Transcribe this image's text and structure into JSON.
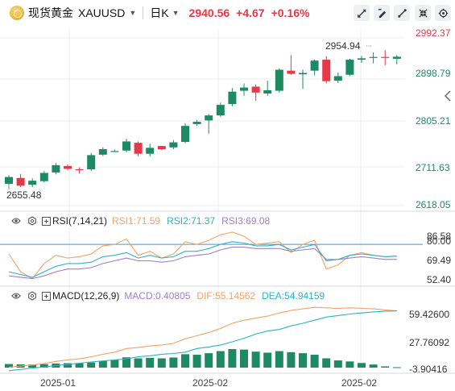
{
  "header": {
    "name_cn": "现货黄金",
    "symbol": "XAUUSD",
    "period": "日K",
    "last_price": "2940.56",
    "change": "+4.67",
    "change_pct": "+0.16%",
    "toolbar_icons": [
      "pencil-ruler-icon",
      "pencil-icon",
      "draw-line-icon",
      "collapse-icon",
      "settings-icon"
    ]
  },
  "price_axis": {
    "ticks": [
      "2992.37",
      "2898.79",
      "2805.21",
      "2711.63",
      "2618.05"
    ],
    "min": 2618.05,
    "max": 2992.37,
    "high_marker": "2954.94",
    "low_marker": "2655.48"
  },
  "candles": [
    {
      "o": 2662,
      "h": 2681,
      "l": 2655,
      "c": 2677
    },
    {
      "o": 2675,
      "h": 2684,
      "l": 2655,
      "c": 2658
    },
    {
      "o": 2660,
      "h": 2674,
      "l": 2655,
      "c": 2669
    },
    {
      "o": 2668,
      "h": 2690,
      "l": 2665,
      "c": 2686
    },
    {
      "o": 2687,
      "h": 2708,
      "l": 2683,
      "c": 2703
    },
    {
      "o": 2701,
      "h": 2705,
      "l": 2692,
      "c": 2695
    },
    {
      "o": 2694,
      "h": 2698,
      "l": 2685,
      "c": 2693
    },
    {
      "o": 2694,
      "h": 2730,
      "l": 2690,
      "c": 2725
    },
    {
      "o": 2726,
      "h": 2742,
      "l": 2723,
      "c": 2738
    },
    {
      "o": 2734,
      "h": 2737,
      "l": 2732,
      "c": 2734
    },
    {
      "o": 2735,
      "h": 2761,
      "l": 2731,
      "c": 2755
    },
    {
      "o": 2752,
      "h": 2755,
      "l": 2722,
      "c": 2728
    },
    {
      "o": 2728,
      "h": 2750,
      "l": 2722,
      "c": 2741
    },
    {
      "o": 2745,
      "h": 2745,
      "l": 2736,
      "c": 2738
    },
    {
      "o": 2742,
      "h": 2758,
      "l": 2738,
      "c": 2753
    },
    {
      "o": 2754,
      "h": 2795,
      "l": 2751,
      "c": 2789
    },
    {
      "o": 2793,
      "h": 2802,
      "l": 2789,
      "c": 2798
    },
    {
      "o": 2801,
      "h": 2815,
      "l": 2772,
      "c": 2812
    },
    {
      "o": 2812,
      "h": 2840,
      "l": 2809,
      "c": 2835
    },
    {
      "o": 2837,
      "h": 2872,
      "l": 2832,
      "c": 2864
    },
    {
      "o": 2866,
      "h": 2882,
      "l": 2855,
      "c": 2873
    },
    {
      "o": 2875,
      "h": 2880,
      "l": 2844,
      "c": 2862
    },
    {
      "o": 2860,
      "h": 2888,
      "l": 2855,
      "c": 2867
    },
    {
      "o": 2866,
      "h": 2915,
      "l": 2862,
      "c": 2912
    },
    {
      "o": 2910,
      "h": 2944,
      "l": 2901,
      "c": 2903
    },
    {
      "o": 2902,
      "h": 2912,
      "l": 2870,
      "c": 2905
    },
    {
      "o": 2910,
      "h": 2934,
      "l": 2900,
      "c": 2932
    },
    {
      "o": 2934,
      "h": 2942,
      "l": 2882,
      "c": 2887
    },
    {
      "o": 2888,
      "h": 2906,
      "l": 2883,
      "c": 2898
    },
    {
      "o": 2901,
      "h": 2936,
      "l": 2898,
      "c": 2934
    },
    {
      "o": 2934,
      "h": 2942,
      "l": 2927,
      "c": 2937
    },
    {
      "o": 2938,
      "h": 2950,
      "l": 2926,
      "c": 2940
    },
    {
      "o": 2940,
      "h": 2954.94,
      "l": 2922,
      "c": 2938
    },
    {
      "o": 2936,
      "h": 2944,
      "l": 2924,
      "c": 2940.56
    }
  ],
  "rsi": {
    "title": "RSI(7,14,21)",
    "rsi1": "RSI1:71.59",
    "rsi2": "RSI2:71.37",
    "rsi3": "RSI3:69.08",
    "ticks": [
      "86.58",
      "80.00",
      "69.49",
      "52.40"
    ],
    "min": 52.4,
    "max": 86.58,
    "overbought": 80,
    "series1": [
      73,
      60,
      55,
      66,
      72,
      70,
      71,
      73,
      79,
      80,
      84,
      72,
      75,
      70,
      73,
      82,
      80,
      83,
      87,
      89,
      86,
      80,
      81,
      82,
      74,
      80,
      83,
      62,
      65,
      72,
      74,
      72,
      71,
      71.59
    ],
    "series2": [
      60,
      58,
      56,
      60,
      64,
      66,
      66,
      67,
      71,
      72,
      74,
      70,
      72,
      70,
      71,
      75,
      75,
      77,
      80,
      82,
      81,
      79,
      79,
      80,
      76,
      78,
      80,
      68,
      69,
      72,
      73,
      72,
      71,
      71.37
    ],
    "series3": [
      57,
      56,
      55,
      57,
      60,
      62,
      62,
      63,
      66,
      68,
      70,
      68,
      68,
      67,
      68,
      71,
      72,
      73,
      76,
      78,
      78,
      77,
      77,
      77,
      75,
      76,
      77,
      69,
      69,
      70,
      71,
      70,
      69,
      69.08
    ]
  },
  "macd": {
    "title": "MACD(12,26,9)",
    "macd_label": "MACD:0.40805",
    "dif_label": "DIF:55.14562",
    "dea_label": "DEA:54.94159",
    "ticks": [
      "59.42600",
      "27.76092",
      "-3.90416"
    ],
    "min": -3.90416,
    "max": 59.426,
    "hist": [
      3.5,
      3.2,
      3.0,
      3.4,
      4.0,
      4.3,
      4.2,
      5.0,
      6.5,
      7.5,
      10.0,
      9.0,
      9.5,
      9.0,
      9.8,
      13.0,
      12.5,
      14.0,
      16.0,
      18.0,
      17.5,
      15.5,
      14.5,
      16.0,
      15.0,
      14.0,
      12.5,
      9.0,
      7.0,
      6.0,
      4.5,
      3.0,
      1.2,
      0.40805
    ],
    "dif": [
      0.5,
      1.5,
      2.5,
      4.0,
      6.0,
      7.5,
      8.5,
      10.5,
      13.0,
      15.0,
      18.5,
      19.5,
      21.0,
      22.0,
      23.5,
      28.0,
      31.0,
      34.0,
      38.0,
      43.0,
      46.0,
      48.0,
      50.0,
      53.0,
      55.5,
      57.0,
      58.5,
      58.0,
      57.5,
      58.0,
      57.5,
      57.0,
      56.0,
      55.14562
    ],
    "dea": [
      -3.0,
      -1.7,
      -0.5,
      0.6,
      2.0,
      3.2,
      4.3,
      5.5,
      6.5,
      7.5,
      8.5,
      10.5,
      11.5,
      13.0,
      13.7,
      15.0,
      18.5,
      20.0,
      22.0,
      25.0,
      28.5,
      32.5,
      35.5,
      37.0,
      40.5,
      43.0,
      46.0,
      49.0,
      50.5,
      52.0,
      53.0,
      54.0,
      54.8,
      54.94159
    ]
  },
  "x_axis": {
    "labels": [
      "2025-01",
      "2025-02",
      "2025-02"
    ]
  },
  "colors": {
    "up": "#1d8a63",
    "down": "#e63946",
    "rsi1": "#f4a261",
    "rsi2": "#2bb3c7",
    "rsi3": "#9b7fd1",
    "overbought_line": "#3a9bd5",
    "grid": "#e9ecef"
  }
}
